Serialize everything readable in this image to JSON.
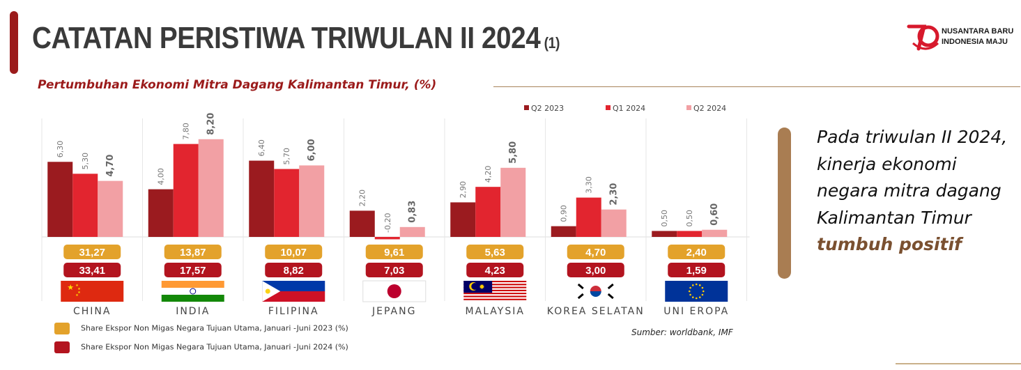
{
  "header": {
    "title": "CATATAN PERISTIWA TRIWULAN II 2024",
    "title_suffix": "(1)",
    "logo_line1": "NUSANTARA BARU",
    "logo_line2": "INDONESIA MAJU"
  },
  "chart_data": {
    "type": "bar",
    "title": "Pertumbuhan Ekonomi Mitra Dagang Kalimantan Timur, (%)",
    "categories": [
      "CHINA",
      "INDIA",
      "FILIPINA",
      "JEPANG",
      "MALAYSIA",
      "KOREA SELATAN",
      "UNI EROPA"
    ],
    "series": [
      {
        "name": "Q2 2023",
        "color": "#9b1b1f",
        "values": [
          6.3,
          4.0,
          6.4,
          2.2,
          2.9,
          0.9,
          0.5
        ],
        "labels": [
          "6,30",
          "4,00",
          "6,40",
          "2,20",
          "2,90",
          "0,90",
          "0,50"
        ]
      },
      {
        "name": "Q1 2024",
        "color": "#e2252f",
        "values": [
          5.3,
          7.8,
          5.7,
          -0.2,
          4.2,
          3.3,
          0.5
        ],
        "labels": [
          "5,30",
          "7,80",
          "5,70",
          "-0,20",
          "4,20",
          "3,30",
          "0,50"
        ]
      },
      {
        "name": "Q2 2024",
        "color": "#f2a0a4",
        "values": [
          4.7,
          8.2,
          6.0,
          0.83,
          5.8,
          2.3,
          0.6
        ],
        "labels": [
          "4,70",
          "8,20",
          "6,00",
          "0,83",
          "5,80",
          "2,30",
          "0,60"
        ]
      }
    ],
    "legend_position": "top-right",
    "grid": false,
    "share_rows": [
      {
        "name": "Share Ekspor Non Migas Negara Tujuan Utama, Januari -Juni 2023 (%)",
        "color": "#e3a22b",
        "values": [
          "31,27",
          "13,87",
          "10,07",
          "9,61",
          "5,63",
          "4,70",
          "2,40"
        ]
      },
      {
        "name": "Share Ekspor Non Migas Negara Tujuan Utama, Januari -Juni 2024 (%)",
        "color": "#b3141f",
        "values": [
          "33,41",
          "17,57",
          "8,82",
          "7,03",
          "4,23",
          "3,00",
          "1,59"
        ]
      }
    ],
    "flags": [
      "china-flag",
      "india-flag",
      "philippines-flag",
      "japan-flag",
      "malaysia-flag",
      "south-korea-flag",
      "eu-flag"
    ]
  },
  "callout": {
    "text": "Pada triwulan II 2024, kinerja ekonomi negara mitra dagang Kalimantan Timur",
    "highlight": "tumbuh positif"
  },
  "source": "Sumber: worldbank, IMF"
}
